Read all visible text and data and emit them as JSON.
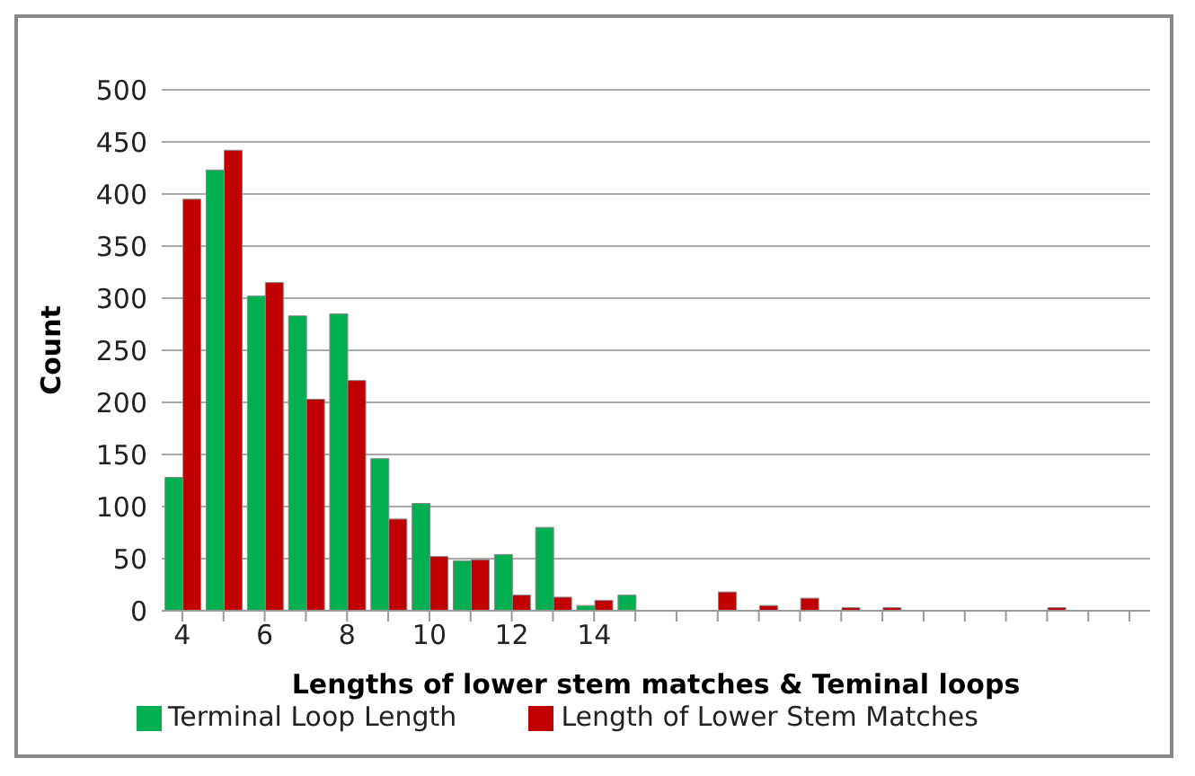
{
  "chart_data": {
    "type": "bar",
    "xlabel": "Lengths of lower stem matches & Teminal loops",
    "ylabel": "Count",
    "categories": [
      "4",
      null,
      "6",
      null,
      "8",
      null,
      "10",
      null,
      "12",
      null,
      "14",
      null,
      null,
      null,
      null,
      null,
      null,
      null,
      null,
      null,
      null,
      null,
      null,
      null
    ],
    "series": [
      {
        "name": "Terminal Loop Length",
        "color": "#00b050",
        "values": [
          128,
          423,
          302,
          283,
          285,
          146,
          103,
          48,
          54,
          80,
          5,
          15,
          0,
          0,
          0,
          0,
          0,
          0,
          0,
          0,
          0,
          0,
          0,
          0
        ]
      },
      {
        "name": "Length of Lower Stem Matches",
        "color": "#c00000",
        "values": [
          395,
          442,
          315,
          203,
          221,
          88,
          52,
          49,
          15,
          13,
          10,
          0,
          0,
          18,
          5,
          12,
          3,
          3,
          0,
          0,
          0,
          3,
          0,
          0
        ]
      }
    ],
    "ylim": [
      0,
      500
    ],
    "yticks": [
      0,
      50,
      100,
      150,
      200,
      250,
      300,
      350,
      400,
      450,
      500
    ],
    "grid": "y",
    "legend": "bottom"
  }
}
